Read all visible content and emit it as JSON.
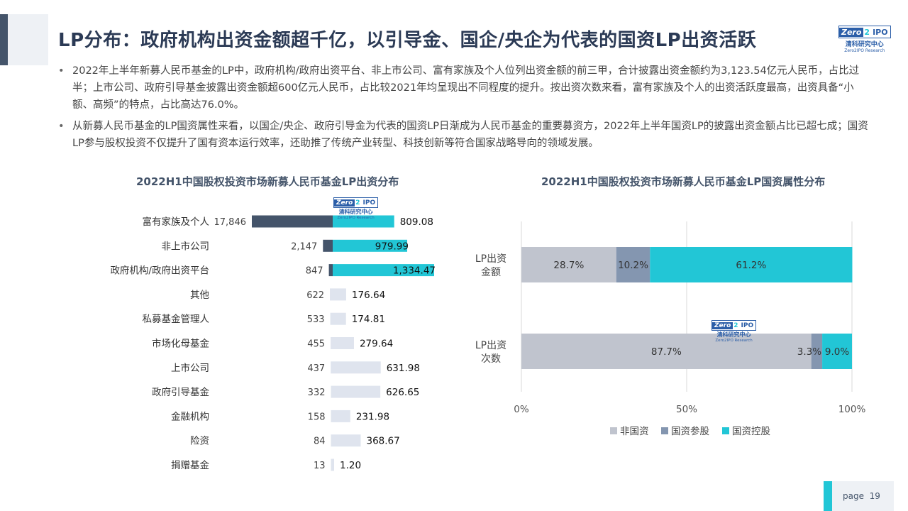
{
  "title": "LP分布：政府机构出资金额超千亿，以引导金、国企/央企为代表的国资LP出资活跃",
  "logo": {
    "zero": "Zero",
    "two": "2",
    "ipo": "IPO",
    "cn": "清科研究中心",
    "en": "Zero2IPO Research"
  },
  "bullets": [
    "2022年上半年新募人民币基金的LP中，政府机构/政府出资平台、非上市公司、富有家族及个人位列出资金额的前三甲，合计披露出资金额约为3,123.54亿元人民币，占比过半；上市公司、政府引导基金披露出资金额超600亿元人民币，占比较2021年均呈现出不同程度的提升。按出资次数来看，富有家族及个人的出资活跃度最高，出资具备“小额、高频”的特点，占比高达76.0%。",
    "从新募人民币基金的LP国资属性来看，以国企/央企、政府引导金为代表的国资LP日渐成为人民币基金的重要募资方，2022年上半年国资LP的披露出资金额占比已超七成；国资LP参与股权投资不仅提升了国有资本运行效率，还助推了传统产业转型、科技创新等符合国家战略导向的领域发展。"
  ],
  "page": {
    "label": "page",
    "number": "19"
  },
  "colors": {
    "count_bar": "#44546a",
    "amount_bar": "#22c6d6",
    "amount_bar_light": "#dfe4ee",
    "non_state": "#c0c4ce",
    "state_share": "#8496b0",
    "state_control": "#22c6d6"
  },
  "chart_data": [
    {
      "type": "bar",
      "orientation": "diverging-horizontal",
      "title": "2022H1中国股权投资市场新募人民币基金LP出资分布",
      "categories": [
        "富有家族及个人",
        "非上市公司",
        "政府机构/政府出资平台",
        "其他",
        "私募基金管理人",
        "市场化母基金",
        "上市公司",
        "政府引导基金",
        "金融机构",
        "险资",
        "捐赠基金"
      ],
      "series": [
        {
          "values": [
            17846,
            2147,
            847,
            622,
            533,
            455,
            437,
            332,
            158,
            84,
            13
          ],
          "labels": [
            "17,846",
            "2,147",
            "847",
            "622",
            "533",
            "455",
            "437",
            "332",
            "158",
            "84",
            "13"
          ]
        },
        {
          "values": [
            809.08,
            979.99,
            1334.47,
            176.64,
            174.81,
            279.64,
            631.98,
            626.65,
            231.98,
            368.67,
            1.2
          ],
          "labels": [
            "809.08",
            "979.99",
            "1,334.47",
            "176.64",
            "174.81",
            "279.64",
            "631.98",
            "626.65",
            "231.98",
            "368.67",
            "1.20"
          ]
        }
      ],
      "highlighted": [
        0,
        1,
        2
      ]
    },
    {
      "type": "bar",
      "orientation": "horizontal-stacked-100",
      "title": "2022H1中国股权投资市场新募人民币基金LP国资属性分布",
      "categories": [
        "LP出资金额",
        "LP出资次数"
      ],
      "series": [
        {
          "name": "非国资",
          "values": [
            28.7,
            87.7
          ],
          "labels": [
            "28.7%",
            "87.7%"
          ]
        },
        {
          "name": "国资参股",
          "values": [
            10.2,
            3.3
          ],
          "labels": [
            "10.2%",
            "3.3%"
          ]
        },
        {
          "name": "国资控股",
          "values": [
            61.2,
            9.0
          ],
          "labels": [
            "61.2%",
            "9.0%"
          ]
        }
      ],
      "xlim": [
        0,
        100
      ],
      "xticks": [
        "0%",
        "50%",
        "100%"
      ],
      "legend": "bottom",
      "grid": true
    }
  ]
}
